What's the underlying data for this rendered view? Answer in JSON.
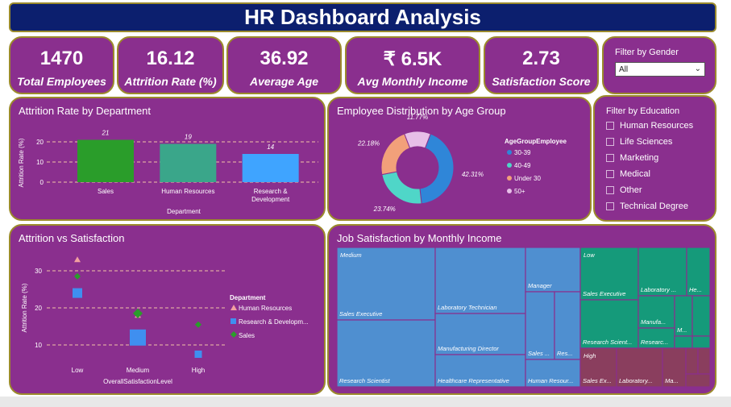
{
  "title": "HR Dashboard Analysis",
  "kpis": [
    {
      "value": "1470",
      "label": "Total Employees"
    },
    {
      "value": "16.12",
      "label": "Attrition Rate (%)"
    },
    {
      "value": "36.92",
      "label": "Average Age"
    },
    {
      "value": "₹ 6.5K",
      "label": "Avg Monthly Income"
    },
    {
      "value": "2.73",
      "label": "Satisfaction Score"
    }
  ],
  "gender_filter": {
    "title": "Filter by Gender",
    "selected": "All"
  },
  "education_filter": {
    "title": "Filter by Education",
    "options": [
      "Human Resources",
      "Life Sciences",
      "Marketing",
      "Medical",
      "Other",
      "Technical Degree"
    ]
  },
  "panels": {
    "attrition_dept": "Attrition Rate by Department",
    "age_dist": "Employee Distribution by Age Group",
    "attr_sat": "Attrition vs Satisfaction",
    "job_sat": "Job Satisfaction by Monthly Income"
  },
  "chart_data": [
    {
      "type": "bar",
      "title": "Attrition Rate by Department",
      "categories": [
        "Sales",
        "Human Resources",
        "Research & Development"
      ],
      "values": [
        21,
        19,
        14
      ],
      "data_labels": [
        "21",
        "19",
        "14"
      ],
      "xlabel": "Department",
      "ylabel": "Attrition Rate (%)",
      "yticks": [
        "20",
        "10",
        "0"
      ],
      "ylim": [
        0,
        22
      ],
      "colors": [
        "#2a9d2a",
        "#3aa68a",
        "#3fa4ff"
      ],
      "grid": true
    },
    {
      "type": "pie",
      "title": "Employee Distribution by Age Group",
      "legend_title": "AgeGroupEmployee",
      "legend_position": "right",
      "labels": [
        "30-39",
        "40-49",
        "Under 30",
        "50+"
      ],
      "values": [
        42.31,
        23.74,
        22.18,
        11.77
      ],
      "data_labels": [
        "42.31%",
        "23.74%",
        "22.18%",
        "11.77%"
      ],
      "colors": [
        "#2f86d8",
        "#4fd6c8",
        "#f2a07a",
        "#e7bfe8"
      ]
    },
    {
      "type": "scatter",
      "title": "Attrition vs Satisfaction",
      "xlabel": "OverallSatisfactionLevel",
      "ylabel": "Attrition Rate (%)",
      "categories": [
        "Low",
        "Medium",
        "High"
      ],
      "yticks": [
        "30",
        "20",
        "10"
      ],
      "ylim": [
        5,
        35
      ],
      "legend_title": "Department",
      "legend_position": "right",
      "series": [
        {
          "name": "Human Resources",
          "marker": "triangle",
          "color": "#f2a0a0",
          "values": [
            33,
            18,
            null
          ]
        },
        {
          "name": "Research & Developm...",
          "marker": "square",
          "color": "#3f8ff0",
          "values": [
            24,
            12,
            7.5
          ]
        },
        {
          "name": "Sales",
          "marker": "diamond",
          "color": "#2a9d2a",
          "values": [
            28.5,
            18.5,
            15.5
          ]
        }
      ]
    },
    {
      "type": "treemap",
      "title": "Job Satisfaction by Monthly Income",
      "groups": [
        {
          "name": "Medium",
          "color": "#4f8fd0",
          "items": [
            "Sales Executive",
            "Research Scientist",
            "Laboratory Technician",
            "Manufacturing Director",
            "Healthcare Representative",
            "Manager",
            "Sales ...",
            "Res...",
            "Human Resour..."
          ]
        },
        {
          "name": "Low",
          "color": "#159a7a",
          "items": [
            "Sales Executive",
            "Laboratory ...",
            "He...",
            "Manufa...",
            "M...",
            "Research Scient...",
            "Researc..."
          ]
        },
        {
          "name": "High",
          "color": "#8a3e5e",
          "items": [
            "Sales Ex...",
            "Laboratory...",
            "Ma..."
          ]
        }
      ]
    }
  ]
}
